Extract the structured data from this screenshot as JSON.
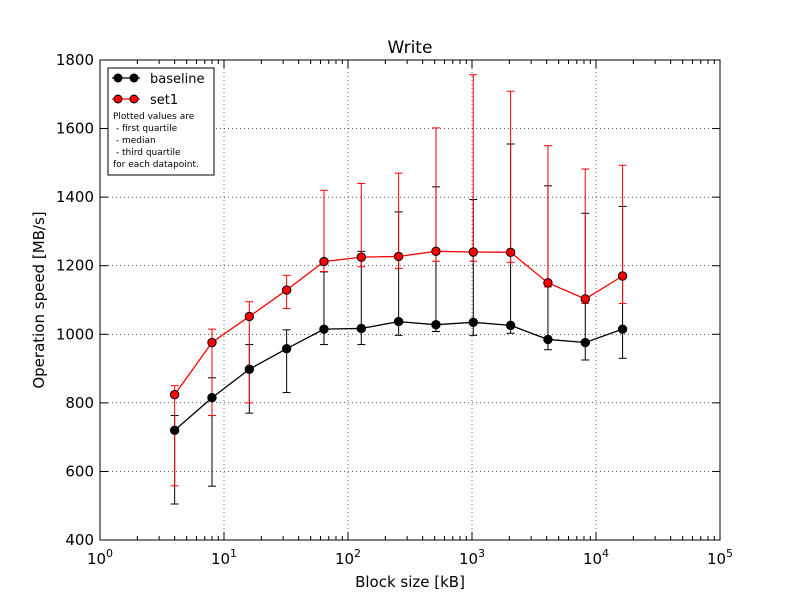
{
  "chart_data": {
    "type": "line",
    "title": "Write",
    "xlabel": "Block size [kB]",
    "ylabel": "Operation speed [MB/s]",
    "xscale": "log",
    "xlim": [
      1,
      100000
    ],
    "ylim": [
      400,
      1800
    ],
    "x_ticks": [
      {
        "value": 1,
        "base": "10",
        "exp": "0"
      },
      {
        "value": 10,
        "base": "10",
        "exp": "1"
      },
      {
        "value": 100,
        "base": "10",
        "exp": "2"
      },
      {
        "value": 1000,
        "base": "10",
        "exp": "3"
      },
      {
        "value": 10000,
        "base": "10",
        "exp": "4"
      },
      {
        "value": 100000,
        "base": "10",
        "exp": "5"
      }
    ],
    "y_ticks": [
      400,
      600,
      800,
      1000,
      1200,
      1400,
      1600,
      1800
    ],
    "grid": true,
    "legend_position": "top-left",
    "legend_note": [
      "Plotted values are",
      " - first quartile",
      " - median",
      " - third quartile",
      "for each datapoint."
    ],
    "x": [
      4,
      8,
      16,
      32,
      64,
      128,
      256,
      512,
      1024,
      2048,
      4096,
      8192,
      16384
    ],
    "series": [
      {
        "name": "baseline",
        "color": "#000000",
        "values": [
          720,
          815,
          898,
          958,
          1015,
          1017,
          1037,
          1028,
          1035,
          1026,
          985,
          976,
          1015
        ],
        "q1": [
          505,
          557,
          770,
          830,
          970,
          970,
          997,
          1008,
          997,
          1003,
          955,
          925,
          930
        ],
        "q3": [
          763,
          873,
          970,
          1013,
          1182,
          1242,
          1357,
          1430,
          1393,
          1555,
          1433,
          1353,
          1373
        ]
      },
      {
        "name": "set1",
        "color": "#ff0000",
        "values": [
          824,
          976,
          1052,
          1129,
          1212,
          1225,
          1227,
          1242,
          1240,
          1239,
          1150,
          1103,
          1170
        ],
        "q1": [
          558,
          763,
          800,
          1075,
          1183,
          1197,
          1192,
          1213,
          1213,
          1210,
          1138,
          1090,
          1090
        ],
        "q3": [
          850,
          1015,
          1095,
          1172,
          1420,
          1440,
          1470,
          1602,
          1757,
          1709,
          1550,
          1482,
          1493
        ]
      }
    ]
  }
}
